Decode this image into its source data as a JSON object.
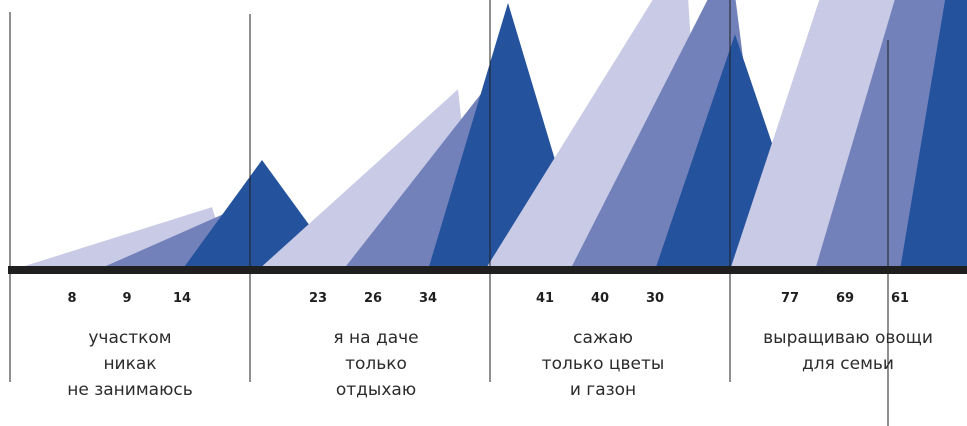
{
  "chart_data": {
    "type": "area",
    "colors": {
      "light": "#c9cbe6",
      "medium": "#7281ba",
      "dark": "#24529c",
      "baseline": "#1f1f1f"
    },
    "series_count_per_group": 3,
    "groups": [
      {
        "caption_lines": [
          "участком",
          "никак",
          "не занимаюсь"
        ],
        "values": [
          8,
          9,
          14
        ]
      },
      {
        "caption_lines": [
          "я на даче",
          "только",
          "отдыхаю"
        ],
        "values": [
          23,
          26,
          34
        ]
      },
      {
        "caption_lines": [
          "сажаю",
          "только цветы",
          "и газон"
        ],
        "values": [
          41,
          40,
          30
        ]
      },
      {
        "caption_lines": [
          "выращиваю овощи",
          "для семьи"
        ],
        "values": [
          77,
          69,
          61
        ]
      }
    ]
  }
}
